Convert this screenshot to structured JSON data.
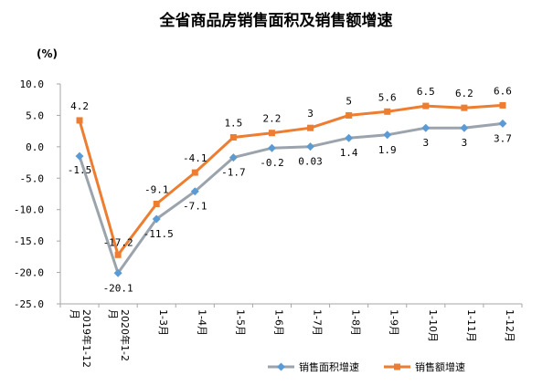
{
  "chart_data": {
    "type": "line",
    "title": "全省商品房销售面积及销售额增速",
    "unit_label": "(%)",
    "categories": [
      "2019年1-12月",
      "2020年1-2月",
      "1-3月",
      "1-4月",
      "1-5月",
      "1-6月",
      "1-7月",
      "1-8月",
      "1-9月",
      "1-10月",
      "1-11月",
      "1-12月"
    ],
    "ylim": [
      -25,
      10
    ],
    "yticks": [
      "10.0",
      "5.0",
      "0.0",
      "-5.0",
      "-10.0",
      "-15.0",
      "-20.0",
      "-25.0"
    ],
    "ytick_values": [
      10,
      5,
      0,
      -5,
      -10,
      -15,
      -20,
      -25
    ],
    "grid": false,
    "legend_position": "bottom-right",
    "series": [
      {
        "name": "销售面积增速",
        "color": "#9BA3AC",
        "marker": "diamond",
        "marker_color": "#5B9BD5",
        "values": [
          -1.5,
          -20.1,
          -11.5,
          -7.1,
          -1.7,
          -0.2,
          0.03,
          1.4,
          1.9,
          3,
          3,
          3.7
        ],
        "labels": [
          "-1.5",
          "-20.1",
          "-11.5",
          "-7.1",
          "-1.7",
          "-0.2",
          "0.03",
          "1.4",
          "1.9",
          "3",
          "3",
          "3.7"
        ]
      },
      {
        "name": "销售额增速",
        "color": "#ED7D31",
        "marker": "square",
        "marker_color": "#ED7D31",
        "values": [
          4.2,
          -17.2,
          -9.1,
          -4.1,
          1.5,
          2.2,
          3,
          5,
          5.6,
          6.5,
          6.2,
          6.6
        ],
        "labels": [
          "4.2",
          "-17.2",
          "-9.1",
          "-4.1",
          "1.5",
          "2.2",
          "3",
          "5",
          "5.6",
          "6.5",
          "6.2",
          "6.6"
        ]
      }
    ]
  }
}
